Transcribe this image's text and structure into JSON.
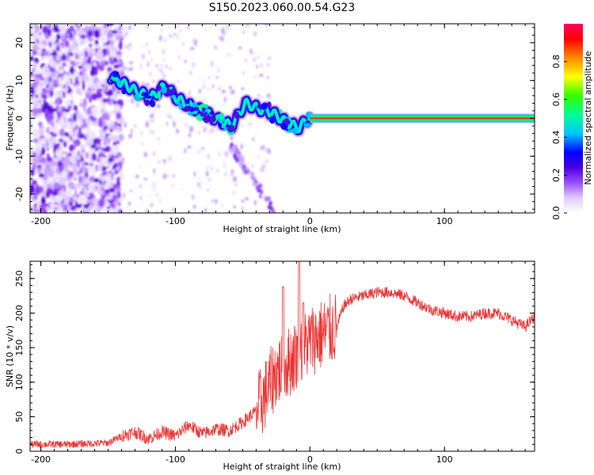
{
  "title": "S150.2023.060.00.54.G23",
  "chart_data": [
    {
      "type": "heatmap",
      "xlabel": "Height of straight line (km)",
      "ylabel": "Frequency (Hz)",
      "xlim": [
        -208,
        167
      ],
      "ylim": [
        -25,
        25
      ],
      "x_ticks": [
        -200,
        -100,
        0,
        100
      ],
      "y_ticks": [
        -20,
        -10,
        0,
        10,
        20
      ],
      "colorbar": {
        "label": "Normalized spectral amplitude",
        "range": [
          0,
          1
        ],
        "ticks": [
          0.0,
          0.2,
          0.4,
          0.6,
          0.8
        ],
        "colormap": [
          "#ffffff",
          "#e0ccff",
          "#9a4dff",
          "#4b00e0",
          "#0000ff",
          "#00c8ff",
          "#00ff96",
          "#32ff00",
          "#ffff00",
          "#ff8800",
          "#ff0000",
          "#ff0066"
        ]
      },
      "ridge": {
        "x": [
          -148,
          -138,
          -128,
          -118,
          -108,
          -98,
          -88,
          -78,
          -68,
          -58,
          -48,
          -38,
          -28,
          -18,
          -8,
          0
        ],
        "y": [
          11,
          9,
          7,
          5.5,
          8.5,
          5,
          3,
          1.5,
          -0.5,
          -2,
          4,
          2.5,
          1.5,
          -1,
          -2.5,
          0.5
        ]
      },
      "carrier": {
        "x_start": 0,
        "x_end": 167,
        "frequency": 0
      }
    },
    {
      "type": "line",
      "xlabel": "Height of straight line (km)",
      "ylabel": "SNR (10 * v/v)",
      "xlim": [
        -208,
        167
      ],
      "ylim": [
        0,
        275
      ],
      "x_ticks": [
        -200,
        -100,
        0,
        100
      ],
      "y_ticks": [
        0,
        50,
        100,
        150,
        200,
        250
      ],
      "color": "#ee3333",
      "envelope": {
        "x": [
          -208,
          -180,
          -150,
          -140,
          -130,
          -120,
          -110,
          -100,
          -90,
          -80,
          -70,
          -60,
          -50,
          -40,
          -35,
          -30,
          -25,
          -20,
          -15,
          -10,
          -5,
          0,
          10,
          20,
          25,
          30,
          40,
          50,
          60,
          70,
          80,
          90,
          100,
          110,
          120,
          130,
          140,
          150,
          160,
          167
        ],
        "y": [
          10,
          10,
          12,
          22,
          28,
          18,
          28,
          22,
          38,
          25,
          32,
          30,
          42,
          58,
          75,
          95,
          115,
          120,
          130,
          140,
          150,
          160,
          170,
          180,
          210,
          220,
          225,
          230,
          230,
          225,
          215,
          205,
          200,
          195,
          195,
          200,
          200,
          190,
          180,
          195
        ]
      },
      "spikes": [
        {
          "x": -20,
          "y": 238
        },
        {
          "x": -8,
          "y": 275
        },
        {
          "x": -5,
          "y": 215
        }
      ]
    }
  ]
}
